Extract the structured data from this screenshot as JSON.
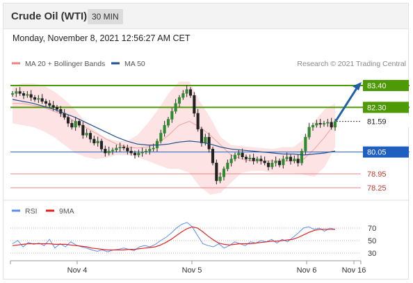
{
  "header": {
    "title": "Crude Oil (WTI)",
    "timeframe": "30 MIN"
  },
  "timestamp": "Monday, November 8, 2021 12:56:27 AM CET",
  "legend": {
    "bollinger": "MA 20 + Bollinger Bands",
    "ma50": "MA 50"
  },
  "credit": "Research © 2021 Trading Central",
  "rsi_legend": {
    "rsi": "RSI",
    "ma9": "9MA"
  },
  "colors": {
    "bollinger": "#f08080",
    "ma50": "#1f4e8c",
    "resistance": "#4e9a06",
    "support": "#1f5fbf",
    "weak_support": "#f08080",
    "arrow": "#1f5fa8",
    "rsi": "#5b8def",
    "rsi_ma": "#e02020"
  },
  "chart_data": [
    {
      "type": "candlestick",
      "title": "Crude Oil (WTI) 30 MIN",
      "x_tick_labels": [
        "Nov 4",
        "Nov 5",
        "Nov 6",
        "Nov 16"
      ],
      "ylim": [
        77.8,
        83.7
      ],
      "levels": [
        {
          "label": "83.40",
          "value": 83.4,
          "kind": "target"
        },
        {
          "label": "82.30",
          "value": 82.3,
          "kind": "resistance"
        },
        {
          "label": "81.59",
          "value": 81.59,
          "kind": "last"
        },
        {
          "label": "80.05",
          "value": 80.05,
          "kind": "pivot"
        },
        {
          "label": "78.95",
          "value": 78.95,
          "kind": "support"
        },
        {
          "label": "78.25",
          "value": 78.25,
          "kind": "support"
        }
      ],
      "close": [
        83.0,
        83.1,
        83.0,
        82.9,
        82.95,
        82.8,
        82.7,
        82.75,
        82.6,
        82.5,
        82.4,
        82.3,
        82.2,
        82.0,
        81.8,
        81.5,
        81.3,
        81.6,
        81.4,
        80.9,
        81.0,
        80.7,
        80.5,
        80.6,
        80.2,
        80.0,
        80.1,
        80.15,
        80.25,
        80.3,
        80.25,
        80.1,
        80.0,
        79.9,
        80.0,
        80.05,
        80.1,
        80.2,
        80.25,
        80.6,
        81.0,
        81.4,
        81.7,
        82.1,
        82.5,
        82.8,
        83.0,
        83.2,
        82.9,
        82.0,
        81.2,
        80.5,
        80.8,
        80.2,
        79.5,
        78.6,
        78.8,
        79.2,
        79.5,
        79.7,
        79.9,
        80.0,
        79.8,
        79.7,
        79.75,
        79.6,
        79.7,
        79.6,
        79.5,
        79.3,
        79.5,
        79.6,
        79.4,
        79.7,
        79.8,
        79.6,
        79.7,
        79.5,
        80.1,
        80.8,
        81.3,
        81.4,
        81.5,
        81.45,
        81.5,
        81.55,
        81.3,
        81.59
      ],
      "bollinger": {
        "mid": [
          82.5,
          82.5,
          82.4,
          82.3,
          82.1,
          81.9,
          81.6,
          81.3,
          81.0,
          80.7,
          80.45,
          80.3,
          80.25,
          80.3,
          80.5,
          80.9,
          81.4,
          81.6,
          81.3,
          80.9,
          80.4,
          79.9,
          79.7,
          79.6,
          79.6,
          79.6,
          79.6,
          79.6,
          79.7,
          80.2,
          80.8,
          81.5
        ],
        "upper": [
          83.4,
          83.5,
          83.5,
          83.4,
          83.1,
          82.7,
          82.2,
          81.6,
          81.1,
          80.75,
          80.6,
          80.6,
          80.9,
          81.5,
          82.2,
          83.0,
          83.6,
          83.6,
          82.6,
          81.8,
          80.8,
          80.4,
          80.35,
          80.3,
          80.25,
          80.2,
          80.3,
          80.3,
          80.7,
          81.6,
          82.2,
          82.5
        ],
        "lower": [
          81.5,
          81.4,
          81.3,
          81.1,
          80.8,
          80.4,
          80.0,
          79.8,
          79.7,
          79.75,
          79.9,
          79.9,
          79.8,
          79.6,
          79.4,
          79.2,
          79.2,
          79.0,
          78.3,
          77.9,
          78.0,
          78.5,
          79.0,
          79.1,
          79.1,
          79.0,
          79.0,
          79.0,
          78.9,
          78.8,
          79.3,
          80.3
        ]
      },
      "ma50": [
        82.7,
        82.6,
        82.5,
        82.35,
        82.2,
        82.0,
        81.8,
        81.55,
        81.3,
        81.05,
        80.8,
        80.6,
        80.45,
        80.4,
        80.4,
        80.45,
        80.55,
        80.6,
        80.55,
        80.45,
        80.3,
        80.2,
        80.15,
        80.1,
        80.05,
        80.0,
        79.95,
        79.95,
        79.9,
        79.95,
        80.0,
        80.1
      ]
    },
    {
      "type": "line",
      "title": "RSI",
      "y_tick_labels": [
        "70",
        "50",
        "30"
      ],
      "ylim": [
        20,
        85
      ],
      "series": [
        {
          "name": "RSI",
          "values": [
            45,
            50,
            40,
            47,
            44,
            46,
            42,
            52,
            38,
            45,
            40,
            48,
            43,
            40,
            38,
            35,
            33,
            35,
            32,
            35,
            36,
            38,
            36,
            34,
            40,
            42,
            40,
            44,
            50,
            55,
            62,
            70,
            76,
            79,
            72,
            58,
            45,
            42,
            40,
            45,
            38,
            42,
            48,
            45,
            42,
            48,
            46,
            50,
            48,
            52,
            46,
            52,
            48,
            55,
            62,
            70,
            72,
            68,
            70,
            65,
            70,
            68
          ]
        },
        {
          "name": "9MA",
          "values": [
            42,
            43,
            44,
            45,
            45,
            45,
            45,
            45,
            44,
            44,
            44,
            43,
            42,
            41,
            40,
            38,
            37,
            36,
            35,
            35,
            35,
            35,
            36,
            36,
            37,
            38,
            39,
            40,
            43,
            47,
            52,
            58,
            64,
            69,
            72,
            70,
            64,
            57,
            51,
            46,
            44,
            43,
            44,
            45,
            45,
            45,
            46,
            47,
            48,
            49,
            49,
            50,
            51,
            52,
            55,
            59,
            63,
            66,
            68,
            68,
            68,
            68
          ]
        }
      ]
    }
  ]
}
